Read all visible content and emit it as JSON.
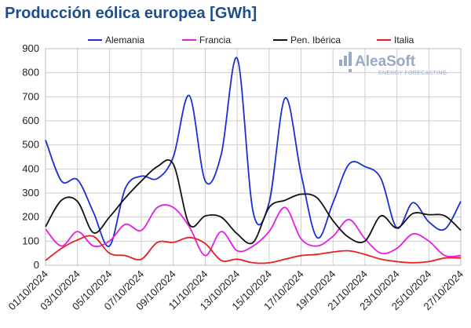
{
  "header": {
    "title": "Producción eólica europea [GWh]"
  },
  "logo": {
    "name": "AleaSoft",
    "tagline": "ENERGY FORECASTING",
    "color": "#9aa9c4"
  },
  "chart_data": {
    "type": "line",
    "title": "Producción eólica europea [GWh]",
    "xlabel": "",
    "ylabel": "",
    "ylim": [
      0,
      900
    ],
    "yticks": [
      0,
      100,
      200,
      300,
      400,
      500,
      600,
      700,
      800,
      900
    ],
    "grid": true,
    "legend_position": "top",
    "x_tick_labels": [
      "01/10/2024",
      "03/10/2024",
      "05/10/2024",
      "07/10/2024",
      "09/10/2024",
      "11/10/2024",
      "13/10/2024",
      "15/10/2024",
      "17/10/2024",
      "19/10/2024",
      "21/10/2024",
      "23/10/2024",
      "25/10/2024",
      "27/10/2024"
    ],
    "x": [
      "01/10/2024",
      "02/10/2024",
      "03/10/2024",
      "04/10/2024",
      "05/10/2024",
      "06/10/2024",
      "07/10/2024",
      "08/10/2024",
      "09/10/2024",
      "10/10/2024",
      "11/10/2024",
      "12/10/2024",
      "13/10/2024",
      "14/10/2024",
      "15/10/2024",
      "16/10/2024",
      "17/10/2024",
      "18/10/2024",
      "19/10/2024",
      "20/10/2024",
      "21/10/2024",
      "22/10/2024",
      "23/10/2024",
      "24/10/2024",
      "25/10/2024",
      "26/10/2024",
      "27/10/2024"
    ],
    "series": [
      {
        "name": "Alemania",
        "color": "#1a2fd6",
        "values": [
          520,
          350,
          355,
          220,
          80,
          320,
          370,
          360,
          450,
          705,
          350,
          460,
          860,
          220,
          260,
          695,
          380,
          115,
          260,
          420,
          410,
          360,
          155,
          260,
          180,
          150,
          265
        ]
      },
      {
        "name": "Francia",
        "color": "#e61de6",
        "values": [
          150,
          80,
          140,
          80,
          100,
          170,
          145,
          240,
          240,
          160,
          40,
          140,
          60,
          80,
          140,
          240,
          110,
          80,
          120,
          190,
          110,
          50,
          70,
          130,
          100,
          40,
          40
        ]
      },
      {
        "name": "Pen. Ibérica",
        "color": "#111111",
        "values": [
          160,
          270,
          265,
          135,
          200,
          280,
          350,
          410,
          420,
          170,
          205,
          200,
          130,
          95,
          240,
          270,
          295,
          280,
          185,
          115,
          100,
          205,
          155,
          215,
          210,
          205,
          145
        ]
      },
      {
        "name": "Italia",
        "color": "#e62020",
        "values": [
          20,
          70,
          105,
          120,
          50,
          40,
          25,
          95,
          95,
          115,
          90,
          20,
          25,
          10,
          10,
          25,
          40,
          45,
          55,
          60,
          45,
          25,
          15,
          10,
          15,
          30,
          30
        ]
      }
    ]
  }
}
